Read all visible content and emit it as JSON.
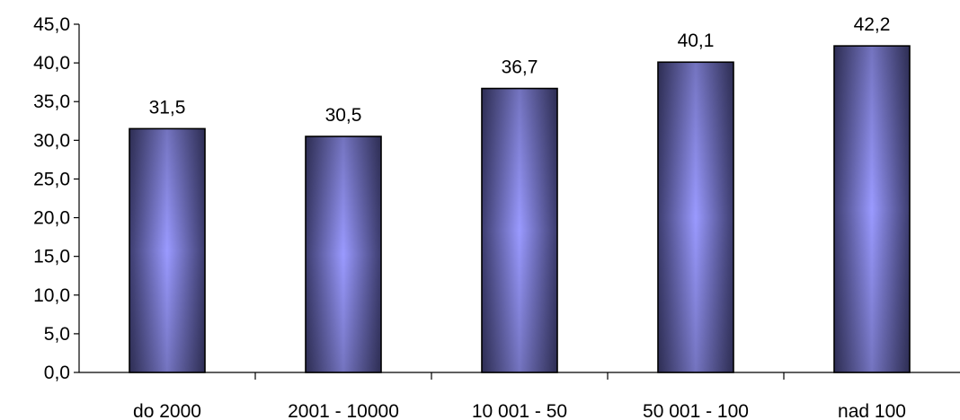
{
  "chart_data": {
    "type": "bar",
    "categories": [
      "do 2000",
      "2001 - 10000",
      "10 001 - 50",
      "50 001 - 100",
      "nad 100"
    ],
    "values": [
      31.5,
      30.5,
      36.7,
      40.1,
      42.2
    ],
    "value_labels": [
      "31,5",
      "30,5",
      "36,7",
      "40,1",
      "42,2"
    ],
    "y_ticks": [
      "0,0",
      "5,0",
      "10,0",
      "15,0",
      "20,0",
      "25,0",
      "30,0",
      "35,0",
      "40,0",
      "45,0"
    ],
    "ylim": [
      0,
      45
    ],
    "y_step": 5,
    "grid": false,
    "legend": false,
    "colors": {
      "bar_edge": "#3c3c6e",
      "bar_center": "#9a9aff",
      "bar_outline": "#000000",
      "axis": "#000000"
    }
  }
}
